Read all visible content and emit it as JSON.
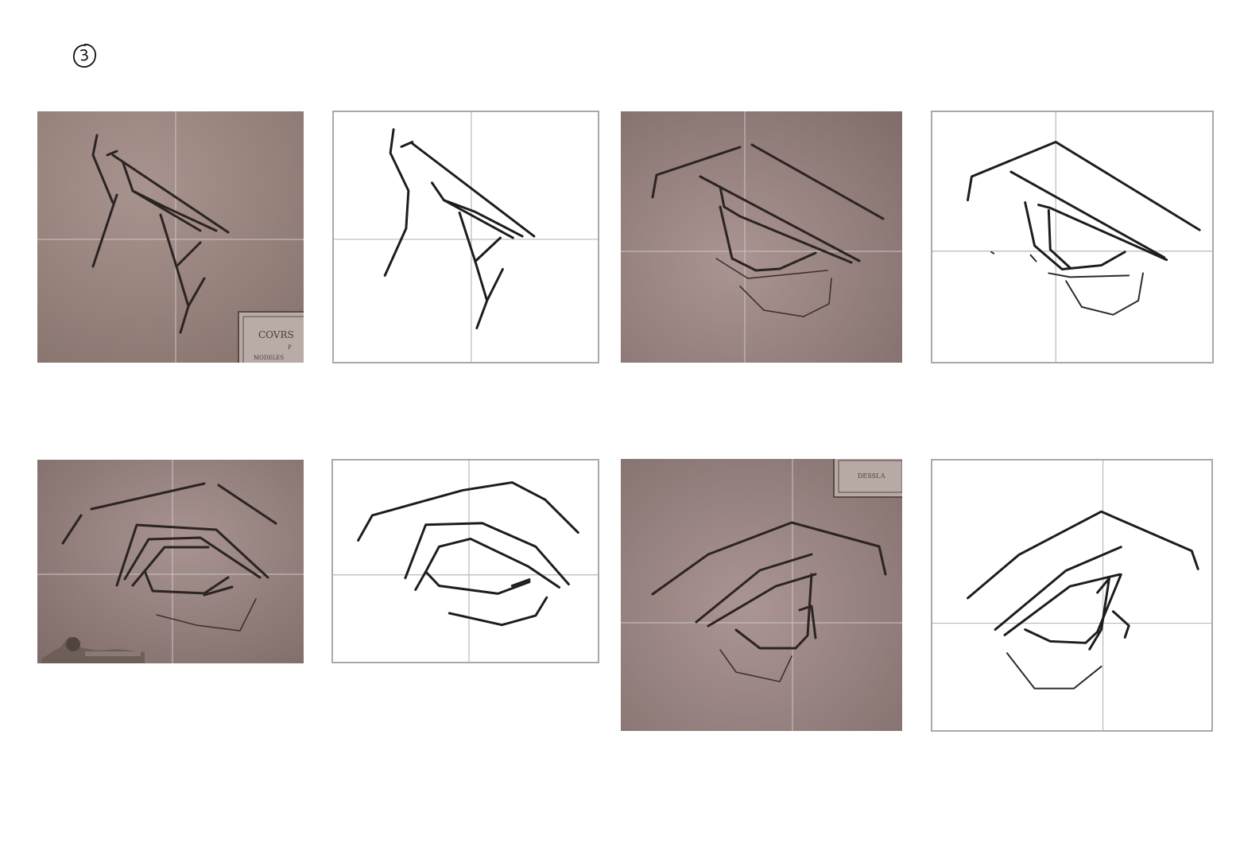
{
  "page": {
    "number": "3"
  },
  "panels": [
    {
      "id": "row1-col1",
      "kind": "reference-photo",
      "subject": "eye"
    },
    {
      "id": "row1-col2",
      "kind": "line-copy",
      "subject": "eye"
    },
    {
      "id": "row1-col3",
      "kind": "reference-photo",
      "subject": "eye"
    },
    {
      "id": "row1-col4",
      "kind": "line-copy",
      "subject": "eye"
    },
    {
      "id": "row2-col1",
      "kind": "reference-photo",
      "subject": "eye"
    },
    {
      "id": "row2-col2",
      "kind": "line-copy",
      "subject": "eye"
    },
    {
      "id": "row2-col3",
      "kind": "reference-photo",
      "subject": "eye"
    },
    {
      "id": "row2-col4",
      "kind": "line-copy",
      "subject": "eye"
    }
  ],
  "plaques": {
    "p1": {
      "line1": "COVRS",
      "line2": "P",
      "line3": "MODELES"
    },
    "p3": {
      "line1": "DESSI.A"
    }
  },
  "colors": {
    "photo_background": "#a08c88",
    "grid_line": "#c8c8c8",
    "stroke": "#1c1c1c",
    "frame": "#a9a9a9"
  }
}
